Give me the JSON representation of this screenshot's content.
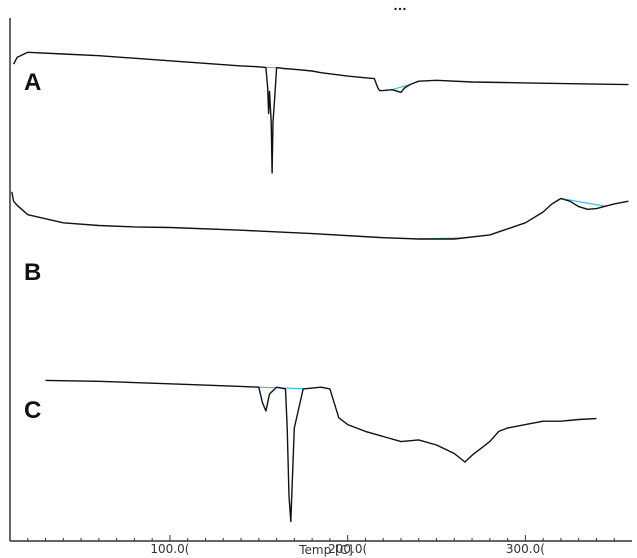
{
  "chart_data": {
    "type": "line",
    "title": "",
    "xlabel": "Temp [C]",
    "ylabel": "",
    "xlim": [
      10,
      360
    ],
    "x_ticks": [
      {
        "value": 100,
        "label": "100.0("
      },
      {
        "value": 200,
        "label": "200.0("
      },
      {
        "value": 300,
        "label": "300.0("
      }
    ],
    "grid": false,
    "colors": {
      "curve": "#111111",
      "baseline": "#2ec7d9",
      "axis": "#333333"
    },
    "series": [
      {
        "name": "A",
        "x": [
          12,
          14,
          20,
          40,
          60,
          100,
          140,
          150,
          154,
          155,
          155.5,
          156,
          157,
          157.5,
          158,
          159,
          160,
          164,
          170,
          180,
          185,
          200,
          210,
          215,
          217,
          218,
          220,
          225,
          230,
          232,
          235,
          240,
          250,
          270,
          300,
          330,
          358
        ],
        "y": [
          0.74,
          0.78,
          0.81,
          0.8,
          0.79,
          0.76,
          0.73,
          0.725,
          0.72,
          0.6,
          0.45,
          0.58,
          0.4,
          0.1,
          0.4,
          0.55,
          0.72,
          0.715,
          0.71,
          0.7,
          0.69,
          0.67,
          0.66,
          0.655,
          0.6,
          0.585,
          0.585,
          0.59,
          0.575,
          0.6,
          0.62,
          0.64,
          0.645,
          0.635,
          0.63,
          0.625,
          0.62
        ]
      },
      {
        "name": "B",
        "x": [
          11,
          12,
          14,
          20,
          40,
          60,
          80,
          100,
          140,
          180,
          220,
          240,
          260,
          280,
          300,
          310,
          315,
          320,
          325,
          330,
          335,
          340,
          350,
          358
        ],
        "y": [
          0.95,
          0.88,
          0.85,
          0.78,
          0.72,
          0.7,
          0.69,
          0.685,
          0.665,
          0.64,
          0.61,
          0.6,
          0.6,
          0.63,
          0.72,
          0.8,
          0.86,
          0.9,
          0.88,
          0.84,
          0.82,
          0.825,
          0.86,
          0.88
        ]
      },
      {
        "name": "C",
        "x": [
          30,
          60,
          100,
          140,
          150,
          152,
          154,
          156,
          160,
          165,
          166,
          167,
          168,
          170,
          175,
          180,
          185,
          190,
          195,
          200,
          210,
          220,
          230,
          240,
          250,
          260,
          266,
          270,
          275,
          280,
          285,
          290,
          300,
          310,
          320,
          330,
          340
        ],
        "y": [
          0.88,
          0.875,
          0.86,
          0.845,
          0.84,
          0.75,
          0.7,
          0.8,
          0.84,
          0.83,
          0.6,
          0.2,
          0.05,
          0.6,
          0.83,
          0.835,
          0.84,
          0.83,
          0.66,
          0.62,
          0.58,
          0.55,
          0.52,
          0.53,
          0.5,
          0.45,
          0.4,
          0.44,
          0.48,
          0.52,
          0.58,
          0.6,
          0.62,
          0.64,
          0.64,
          0.65,
          0.655
        ]
      }
    ],
    "panel_labels": [
      "A",
      "B",
      "C"
    ]
  },
  "header_fragment": "…"
}
